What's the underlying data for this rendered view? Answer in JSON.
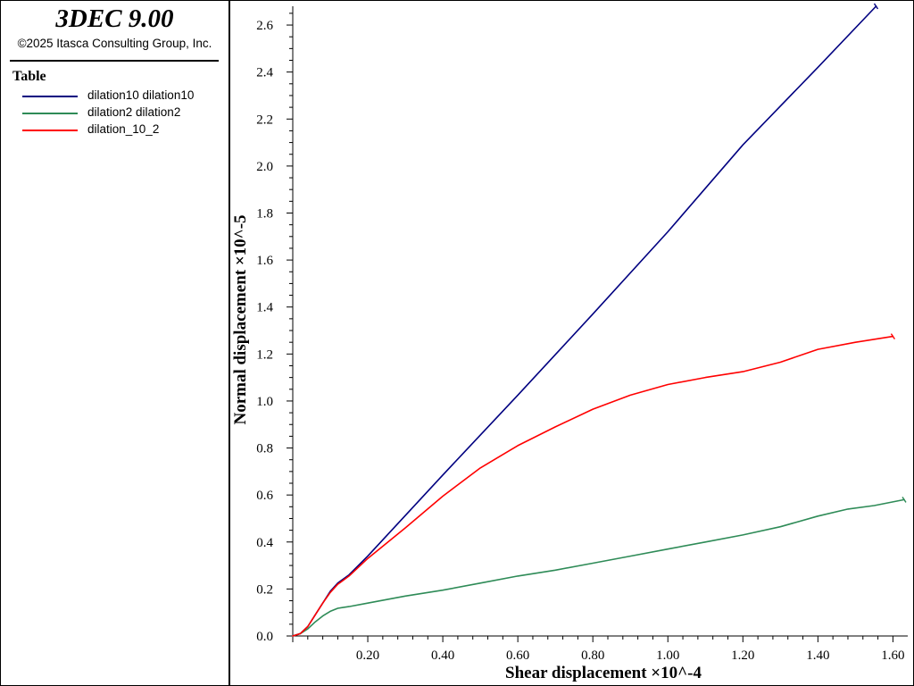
{
  "app": {
    "title": "3DEC 9.00",
    "copyright": "©2025 Itasca Consulting Group, Inc."
  },
  "legend": {
    "title": "Table",
    "placement": "left panel"
  },
  "chart_data": {
    "type": "line",
    "xlabel": "Shear displacement ×10^-4",
    "ylabel": "Normal displacement ×10^-5",
    "xlim": [
      0,
      1.63
    ],
    "ylim": [
      0,
      2.68
    ],
    "xticks": [
      "0.20",
      "0.40",
      "0.60",
      "0.80",
      "1.00",
      "1.20",
      "1.40",
      "1.60"
    ],
    "yticks": [
      "0.0",
      "0.2",
      "0.4",
      "0.6",
      "0.8",
      "1.0",
      "1.2",
      "1.4",
      "1.6",
      "1.8",
      "2.0",
      "2.2",
      "2.4",
      "2.6"
    ],
    "grid": false,
    "series": [
      {
        "name": "dilation10 dilation10",
        "color": "#000080",
        "points": [
          [
            0,
            0
          ],
          [
            0.02,
            0.01
          ],
          [
            0.04,
            0.04
          ],
          [
            0.06,
            0.09
          ],
          [
            0.08,
            0.14
          ],
          [
            0.1,
            0.19
          ],
          [
            0.12,
            0.225
          ],
          [
            0.15,
            0.26
          ],
          [
            0.2,
            0.34
          ],
          [
            0.4,
            0.685
          ],
          [
            0.6,
            1.025
          ],
          [
            0.8,
            1.37
          ],
          [
            1.0,
            1.72
          ],
          [
            1.2,
            2.09
          ],
          [
            1.4,
            2.42
          ],
          [
            1.555,
            2.68
          ]
        ]
      },
      {
        "name": "dilation2 dilation2",
        "color": "#2E8B57",
        "points": [
          [
            0,
            0
          ],
          [
            0.02,
            0.01
          ],
          [
            0.04,
            0.03
          ],
          [
            0.06,
            0.06
          ],
          [
            0.08,
            0.085
          ],
          [
            0.1,
            0.105
          ],
          [
            0.12,
            0.118
          ],
          [
            0.15,
            0.125
          ],
          [
            0.2,
            0.14
          ],
          [
            0.3,
            0.17
          ],
          [
            0.4,
            0.195
          ],
          [
            0.5,
            0.225
          ],
          [
            0.6,
            0.255
          ],
          [
            0.7,
            0.28
          ],
          [
            0.8,
            0.31
          ],
          [
            0.9,
            0.34
          ],
          [
            1.0,
            0.37
          ],
          [
            1.1,
            0.4
          ],
          [
            1.2,
            0.43
          ],
          [
            1.3,
            0.465
          ],
          [
            1.4,
            0.51
          ],
          [
            1.48,
            0.54
          ],
          [
            1.55,
            0.555
          ],
          [
            1.63,
            0.58
          ]
        ]
      },
      {
        "name": "dilation_10_2",
        "color": "#FF0000",
        "points": [
          [
            0,
            0
          ],
          [
            0.02,
            0.01
          ],
          [
            0.04,
            0.04
          ],
          [
            0.06,
            0.09
          ],
          [
            0.08,
            0.14
          ],
          [
            0.1,
            0.185
          ],
          [
            0.12,
            0.22
          ],
          [
            0.15,
            0.255
          ],
          [
            0.2,
            0.33
          ],
          [
            0.3,
            0.46
          ],
          [
            0.4,
            0.595
          ],
          [
            0.5,
            0.715
          ],
          [
            0.6,
            0.81
          ],
          [
            0.7,
            0.89
          ],
          [
            0.8,
            0.965
          ],
          [
            0.9,
            1.025
          ],
          [
            1.0,
            1.07
          ],
          [
            1.1,
            1.1
          ],
          [
            1.2,
            1.125
          ],
          [
            1.3,
            1.165
          ],
          [
            1.4,
            1.22
          ],
          [
            1.5,
            1.25
          ],
          [
            1.6,
            1.275
          ]
        ]
      }
    ]
  }
}
